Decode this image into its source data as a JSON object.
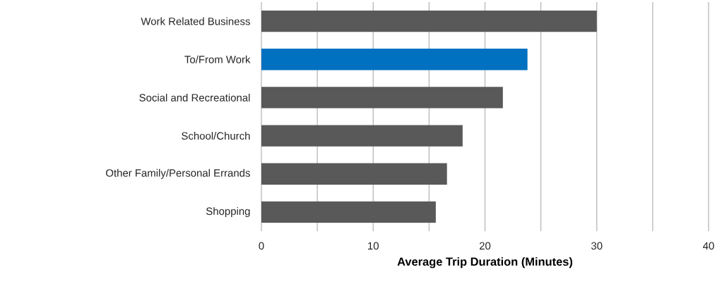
{
  "chart_data": {
    "type": "bar",
    "orientation": "horizontal",
    "xlabel": "Average Trip Duration (Minutes)",
    "categories": [
      "Work Related Business",
      "To/From Work",
      "Social and Recreational",
      "School/Church",
      "Other Family/Personal Errands",
      "Shopping"
    ],
    "values": [
      30.0,
      23.8,
      21.6,
      18.0,
      16.6,
      15.6
    ],
    "colors": [
      "#595959",
      "#0070c0",
      "#595959",
      "#595959",
      "#595959",
      "#595959"
    ],
    "xlim": [
      0,
      40
    ],
    "xticks": [
      0,
      {
        "value": 5,
        "label": null
      },
      10,
      {
        "value": 15,
        "label": null
      },
      20,
      {
        "value": 25,
        "label": null
      },
      30,
      {
        "value": 35,
        "label": null
      },
      40
    ],
    "grid": "x"
  }
}
